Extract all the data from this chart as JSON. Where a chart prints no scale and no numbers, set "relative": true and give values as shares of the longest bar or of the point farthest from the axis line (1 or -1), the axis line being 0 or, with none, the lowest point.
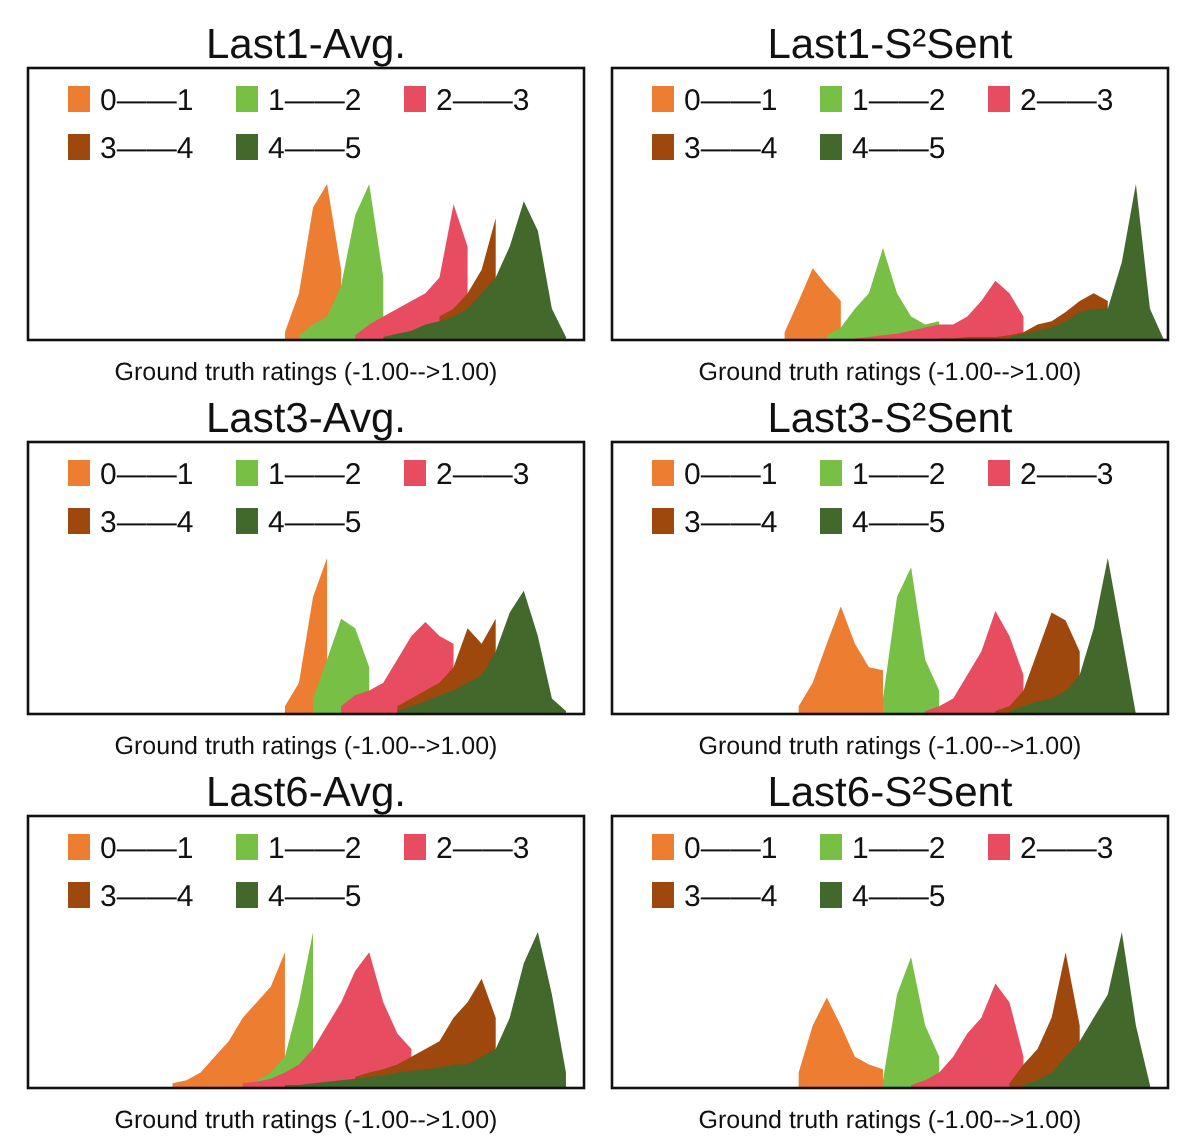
{
  "chart_data": [
    {
      "type": "area",
      "title": "Last1-Avg.",
      "xlabel": "Ground truth ratings (-1.00-->1.00)",
      "relative": true,
      "legend": "top",
      "categories": [
        null,
        null,
        null,
        null,
        null,
        null,
        null,
        null,
        null,
        null,
        null,
        null,
        null,
        null,
        null,
        null,
        null,
        null,
        null,
        null,
        null,
        null,
        null,
        null,
        null,
        null,
        null,
        null,
        null,
        null,
        null,
        null,
        null,
        null,
        null,
        null,
        null,
        null,
        null,
        null
      ],
      "series": [
        {
          "name": "0——1",
          "color": "#ed7d31",
          "values": [
            null,
            null,
            null,
            null,
            null,
            null,
            null,
            null,
            null,
            null,
            null,
            null,
            null,
            null,
            null,
            null,
            null,
            null,
            0.05,
            0.3,
            0.85,
            1,
            0.45,
            null,
            null,
            null,
            null,
            null,
            null,
            null,
            null,
            null,
            null,
            null,
            null,
            null,
            null,
            null,
            null,
            null
          ]
        },
        {
          "name": "1——2",
          "color": "#77bf45",
          "values": [
            null,
            null,
            null,
            null,
            null,
            null,
            null,
            null,
            null,
            null,
            null,
            null,
            null,
            null,
            null,
            null,
            null,
            null,
            null,
            0.03,
            0.1,
            0.15,
            0.35,
            0.8,
            1,
            0.4,
            null,
            null,
            null,
            null,
            null,
            null,
            null,
            null,
            null,
            null,
            null,
            null,
            null,
            null
          ]
        },
        {
          "name": "2——3",
          "color": "#e84c60",
          "values": [
            null,
            null,
            null,
            null,
            null,
            null,
            null,
            null,
            null,
            null,
            null,
            null,
            null,
            null,
            null,
            null,
            null,
            null,
            null,
            null,
            null,
            null,
            null,
            0.03,
            0.1,
            0.15,
            0.2,
            0.25,
            0.3,
            0.4,
            0.87,
            0.6,
            null,
            null,
            null,
            null,
            null,
            null,
            null,
            null
          ]
        },
        {
          "name": "3——4",
          "color": "#9e480e",
          "values": [
            null,
            null,
            null,
            null,
            null,
            null,
            null,
            null,
            null,
            null,
            null,
            null,
            null,
            null,
            null,
            null,
            null,
            null,
            null,
            null,
            null,
            null,
            null,
            null,
            null,
            null,
            null,
            null,
            null,
            0.15,
            0.2,
            0.3,
            0.45,
            0.78,
            null,
            null,
            null,
            null,
            null,
            null
          ]
        },
        {
          "name": "4——5",
          "color": "#43682b",
          "values": [
            null,
            null,
            null,
            null,
            null,
            null,
            null,
            null,
            null,
            null,
            null,
            null,
            null,
            null,
            null,
            null,
            null,
            null,
            null,
            null,
            null,
            null,
            null,
            null,
            null,
            0.02,
            0.04,
            0.06,
            0.1,
            0.12,
            0.15,
            0.2,
            0.3,
            0.4,
            0.6,
            0.89,
            0.7,
            0.2,
            0.02,
            null
          ]
        }
      ]
    },
    {
      "type": "area",
      "title": "Last1-S²Sent",
      "xlabel": "Ground truth ratings (-1.00-->1.00)",
      "relative": true,
      "legend": "top",
      "categories": [
        null,
        null,
        null,
        null,
        null,
        null,
        null,
        null,
        null,
        null,
        null,
        null,
        null,
        null,
        null,
        null,
        null,
        null,
        null,
        null,
        null,
        null,
        null,
        null,
        null,
        null,
        null,
        null,
        null,
        null,
        null,
        null,
        null,
        null,
        null,
        null,
        null,
        null,
        null,
        null
      ],
      "series": [
        {
          "name": "0——1",
          "color": "#ed7d31",
          "values": [
            null,
            null,
            null,
            null,
            null,
            null,
            null,
            null,
            null,
            null,
            null,
            null,
            0.05,
            0.25,
            0.46,
            0.35,
            0.25,
            null,
            null,
            null,
            null,
            null,
            null,
            null,
            null,
            null,
            null,
            null,
            null,
            null,
            null,
            null,
            null,
            null,
            null,
            null,
            null,
            null,
            null,
            null
          ]
        },
        {
          "name": "1——2",
          "color": "#77bf45",
          "values": [
            null,
            null,
            null,
            null,
            null,
            null,
            null,
            null,
            null,
            null,
            null,
            null,
            null,
            null,
            null,
            0.03,
            0.08,
            0.2,
            0.3,
            0.59,
            0.3,
            0.15,
            0.1,
            0.12,
            null,
            null,
            null,
            null,
            null,
            null,
            null,
            null,
            null,
            null,
            null,
            null,
            null,
            null,
            null,
            null
          ]
        },
        {
          "name": "2——3",
          "color": "#e84c60",
          "values": [
            null,
            null,
            null,
            null,
            null,
            null,
            null,
            null,
            null,
            null,
            null,
            null,
            null,
            null,
            null,
            null,
            null,
            0.01,
            0.02,
            0.03,
            0.04,
            0.06,
            0.08,
            0.1,
            0.1,
            0.15,
            0.25,
            0.38,
            0.3,
            0.15,
            null,
            null,
            null,
            null,
            null,
            null,
            null,
            null,
            null,
            null
          ]
        },
        {
          "name": "3——4",
          "color": "#9e480e",
          "values": [
            null,
            null,
            null,
            null,
            null,
            null,
            null,
            null,
            null,
            null,
            null,
            null,
            null,
            null,
            null,
            null,
            null,
            null,
            null,
            null,
            null,
            null,
            null,
            0.01,
            0.01,
            0.02,
            0.02,
            0.02,
            0.03,
            0.05,
            0.1,
            0.12,
            0.18,
            0.25,
            0.3,
            0.25,
            null,
            null,
            null,
            null
          ]
        },
        {
          "name": "4——5",
          "color": "#43682b",
          "values": [
            null,
            null,
            null,
            null,
            null,
            null,
            null,
            null,
            null,
            null,
            null,
            null,
            null,
            null,
            null,
            null,
            null,
            null,
            null,
            null,
            null,
            null,
            null,
            null,
            null,
            null,
            null,
            null,
            0.02,
            0.04,
            0.06,
            0.08,
            0.12,
            0.18,
            0.2,
            0.2,
            0.5,
            1,
            0.2,
            0
          ]
        }
      ]
    },
    {
      "type": "area",
      "title": "Last3-Avg.",
      "xlabel": "Ground truth ratings (-1.00-->1.00)",
      "relative": true,
      "legend": "top",
      "categories": [
        null,
        null,
        null,
        null,
        null,
        null,
        null,
        null,
        null,
        null,
        null,
        null,
        null,
        null,
        null,
        null,
        null,
        null,
        null,
        null,
        null,
        null,
        null,
        null,
        null,
        null,
        null,
        null,
        null,
        null,
        null,
        null,
        null,
        null,
        null,
        null,
        null,
        null,
        null,
        null
      ],
      "series": [
        {
          "name": "0——1",
          "color": "#ed7d31",
          "values": [
            null,
            null,
            null,
            null,
            null,
            null,
            null,
            null,
            null,
            null,
            null,
            null,
            null,
            null,
            null,
            null,
            null,
            null,
            0.05,
            0.2,
            0.75,
            1,
            null,
            null,
            null,
            null,
            null,
            null,
            null,
            null,
            null,
            null,
            null,
            null,
            null,
            null,
            null,
            null,
            null,
            null
          ]
        },
        {
          "name": "1——2",
          "color": "#77bf45",
          "values": [
            null,
            null,
            null,
            null,
            null,
            null,
            null,
            null,
            null,
            null,
            null,
            null,
            null,
            null,
            null,
            null,
            null,
            null,
            null,
            null,
            0.1,
            0.35,
            0.61,
            0.55,
            0.3,
            null,
            null,
            null,
            null,
            null,
            null,
            null,
            null,
            null,
            null,
            null,
            null,
            null,
            null,
            null
          ]
        },
        {
          "name": "2——3",
          "color": "#e84c60",
          "values": [
            null,
            null,
            null,
            null,
            null,
            null,
            null,
            null,
            null,
            null,
            null,
            null,
            null,
            null,
            null,
            null,
            null,
            null,
            null,
            null,
            null,
            null,
            0.05,
            0.12,
            0.15,
            0.2,
            0.35,
            0.5,
            0.59,
            0.5,
            0.45,
            null,
            null,
            null,
            null,
            null,
            null,
            null,
            null,
            null
          ]
        },
        {
          "name": "3——4",
          "color": "#9e480e",
          "values": [
            null,
            null,
            null,
            null,
            null,
            null,
            null,
            null,
            null,
            null,
            null,
            null,
            null,
            null,
            null,
            null,
            null,
            null,
            null,
            null,
            null,
            null,
            null,
            null,
            null,
            null,
            0.05,
            0.1,
            0.15,
            0.2,
            0.3,
            0.55,
            0.45,
            0.61,
            null,
            null,
            null,
            null,
            null,
            null
          ]
        },
        {
          "name": "4——5",
          "color": "#43682b",
          "values": [
            null,
            null,
            null,
            null,
            null,
            null,
            null,
            null,
            null,
            null,
            null,
            null,
            null,
            null,
            null,
            null,
            null,
            null,
            null,
            null,
            null,
            null,
            null,
            null,
            null,
            null,
            0.02,
            0.05,
            0.08,
            0.12,
            0.15,
            0.2,
            0.25,
            0.4,
            0.65,
            0.79,
            0.5,
            0.1,
            0.02,
            null
          ]
        }
      ]
    },
    {
      "type": "area",
      "title": "Last3-S²Sent",
      "xlabel": "Ground truth ratings (-1.00-->1.00)",
      "relative": true,
      "legend": "top",
      "categories": [
        null,
        null,
        null,
        null,
        null,
        null,
        null,
        null,
        null,
        null,
        null,
        null,
        null,
        null,
        null,
        null,
        null,
        null,
        null,
        null,
        null,
        null,
        null,
        null,
        null,
        null,
        null,
        null,
        null,
        null,
        null,
        null,
        null,
        null,
        null,
        null,
        null,
        null,
        null,
        null
      ],
      "series": [
        {
          "name": "0——1",
          "color": "#ed7d31",
          "values": [
            null,
            null,
            null,
            null,
            null,
            null,
            null,
            null,
            null,
            null,
            null,
            null,
            null,
            0.05,
            0.2,
            0.45,
            0.69,
            0.45,
            0.3,
            0.28,
            null,
            null,
            null,
            null,
            null,
            null,
            null,
            null,
            null,
            null,
            null,
            null,
            null,
            null,
            null,
            null,
            null,
            null,
            null,
            null
          ]
        },
        {
          "name": "1——2",
          "color": "#77bf45",
          "values": [
            null,
            null,
            null,
            null,
            null,
            null,
            null,
            null,
            null,
            null,
            null,
            null,
            null,
            null,
            null,
            null,
            null,
            null,
            null,
            0.1,
            0.75,
            0.94,
            0.35,
            0.15,
            null,
            null,
            null,
            null,
            null,
            null,
            null,
            null,
            null,
            null,
            null,
            null,
            null,
            null,
            null,
            null
          ]
        },
        {
          "name": "2——3",
          "color": "#e84c60",
          "values": [
            null,
            null,
            null,
            null,
            null,
            null,
            null,
            null,
            null,
            null,
            null,
            null,
            null,
            null,
            null,
            null,
            null,
            null,
            null,
            null,
            null,
            null,
            0.02,
            0.05,
            0.1,
            0.25,
            0.4,
            0.66,
            0.5,
            0.25,
            null,
            null,
            null,
            null,
            null,
            null,
            null,
            null,
            null,
            null
          ]
        },
        {
          "name": "3——4",
          "color": "#9e480e",
          "values": [
            null,
            null,
            null,
            null,
            null,
            null,
            null,
            null,
            null,
            null,
            null,
            null,
            null,
            null,
            null,
            null,
            null,
            null,
            null,
            null,
            null,
            null,
            null,
            null,
            null,
            null,
            null,
            0.02,
            0.05,
            0.15,
            0.4,
            0.65,
            0.6,
            0.4,
            null,
            null,
            null,
            null,
            null,
            null
          ]
        },
        {
          "name": "4——5",
          "color": "#43682b",
          "values": [
            null,
            null,
            null,
            null,
            null,
            null,
            null,
            null,
            null,
            null,
            null,
            null,
            null,
            null,
            null,
            null,
            null,
            null,
            null,
            null,
            null,
            null,
            null,
            null,
            null,
            null,
            null,
            null,
            0.02,
            0.05,
            0.08,
            0.1,
            0.15,
            0.25,
            0.55,
            1,
            0.5,
            0,
            null,
            null
          ]
        }
      ]
    },
    {
      "type": "area",
      "title": "Last6-Avg.",
      "xlabel": "Ground truth ratings (-1.00-->1.00)",
      "relative": true,
      "legend": "top",
      "categories": [
        null,
        null,
        null,
        null,
        null,
        null,
        null,
        null,
        null,
        null,
        null,
        null,
        null,
        null,
        null,
        null,
        null,
        null,
        null,
        null,
        null,
        null,
        null,
        null,
        null,
        null,
        null,
        null,
        null,
        null,
        null,
        null,
        null,
        null,
        null,
        null,
        null,
        null,
        null,
        null
      ],
      "series": [
        {
          "name": "0——1",
          "color": "#ed7d31",
          "values": [
            null,
            null,
            null,
            null,
            null,
            null,
            null,
            null,
            null,
            null,
            0.03,
            0.05,
            0.1,
            0.2,
            0.3,
            0.45,
            0.55,
            0.65,
            0.87,
            null,
            null,
            null,
            null,
            null,
            null,
            null,
            null,
            null,
            null,
            null,
            null,
            null,
            null,
            null,
            null,
            null,
            null,
            null,
            null,
            null
          ]
        },
        {
          "name": "1——2",
          "color": "#77bf45",
          "values": [
            null,
            null,
            null,
            null,
            null,
            null,
            null,
            null,
            null,
            null,
            null,
            null,
            null,
            null,
            null,
            null,
            0.05,
            0.1,
            0.2,
            0.55,
            1,
            null,
            null,
            null,
            null,
            null,
            null,
            null,
            null,
            null,
            null,
            null,
            null,
            null,
            null,
            null,
            null,
            null,
            null,
            null
          ]
        },
        {
          "name": "2——3",
          "color": "#e84c60",
          "values": [
            null,
            null,
            null,
            null,
            null,
            null,
            null,
            null,
            null,
            null,
            null,
            null,
            null,
            null,
            null,
            0.03,
            0.04,
            0.06,
            0.1,
            0.15,
            0.25,
            0.4,
            0.55,
            0.75,
            0.87,
            0.55,
            0.35,
            0.25,
            null,
            null,
            null,
            null,
            null,
            null,
            null,
            null,
            null,
            null,
            null,
            null
          ]
        },
        {
          "name": "3——4",
          "color": "#9e480e",
          "values": [
            null,
            null,
            null,
            null,
            null,
            null,
            null,
            null,
            null,
            null,
            null,
            null,
            null,
            null,
            null,
            null,
            null,
            null,
            null,
            null,
            null,
            null,
            null,
            0.07,
            0.1,
            0.12,
            0.15,
            0.2,
            0.25,
            0.3,
            0.45,
            0.55,
            0.7,
            0.45,
            null,
            null,
            null,
            null,
            null,
            null
          ]
        },
        {
          "name": "4——5",
          "color": "#43682b",
          "values": [
            null,
            null,
            null,
            null,
            null,
            null,
            null,
            null,
            null,
            null,
            null,
            null,
            null,
            null,
            null,
            null,
            null,
            null,
            0.02,
            0.02,
            0.03,
            0.04,
            0.05,
            0.06,
            0.07,
            0.08,
            0.1,
            0.11,
            0.12,
            0.13,
            0.15,
            0.15,
            0.2,
            0.25,
            0.45,
            0.8,
            1,
            0.6,
            0.1,
            null
          ]
        }
      ]
    },
    {
      "type": "area",
      "title": "Last6-S²Sent",
      "xlabel": "Ground truth ratings (-1.00-->1.00)",
      "relative": true,
      "legend": "top",
      "categories": [
        null,
        null,
        null,
        null,
        null,
        null,
        null,
        null,
        null,
        null,
        null,
        null,
        null,
        null,
        null,
        null,
        null,
        null,
        null,
        null,
        null,
        null,
        null,
        null,
        null,
        null,
        null,
        null,
        null,
        null,
        null,
        null,
        null,
        null,
        null,
        null,
        null,
        null,
        null,
        null
      ],
      "series": [
        {
          "name": "0——1",
          "color": "#ed7d31",
          "values": [
            null,
            null,
            null,
            null,
            null,
            null,
            null,
            null,
            null,
            null,
            null,
            null,
            null,
            0.1,
            0.4,
            0.58,
            0.4,
            0.2,
            0.15,
            0.12,
            null,
            null,
            null,
            null,
            null,
            null,
            null,
            null,
            null,
            null,
            null,
            null,
            null,
            null,
            null,
            null,
            null,
            null,
            null,
            null
          ]
        },
        {
          "name": "1——2",
          "color": "#77bf45",
          "values": [
            null,
            null,
            null,
            null,
            null,
            null,
            null,
            null,
            null,
            null,
            null,
            null,
            null,
            null,
            null,
            null,
            null,
            null,
            null,
            0.05,
            0.6,
            0.84,
            0.4,
            0.2,
            null,
            null,
            null,
            null,
            null,
            null,
            null,
            null,
            null,
            null,
            null,
            null,
            null,
            null,
            null,
            null
          ]
        },
        {
          "name": "2——3",
          "color": "#e84c60",
          "values": [
            null,
            null,
            null,
            null,
            null,
            null,
            null,
            null,
            null,
            null,
            null,
            null,
            null,
            null,
            null,
            null,
            null,
            null,
            null,
            null,
            null,
            0.02,
            0.05,
            0.1,
            0.2,
            0.35,
            0.45,
            0.67,
            0.55,
            0.2,
            null,
            null,
            null,
            null,
            null,
            null,
            null,
            null,
            null,
            null
          ]
        },
        {
          "name": "3——4",
          "color": "#9e480e",
          "values": [
            null,
            null,
            null,
            null,
            null,
            null,
            null,
            null,
            null,
            null,
            null,
            null,
            null,
            null,
            null,
            null,
            null,
            null,
            null,
            null,
            null,
            null,
            null,
            null,
            null,
            null,
            null,
            null,
            0.03,
            0.15,
            0.25,
            0.45,
            0.87,
            0.4,
            null,
            null,
            null,
            null,
            null,
            null
          ]
        },
        {
          "name": "4——5",
          "color": "#43682b",
          "values": [
            null,
            null,
            null,
            null,
            null,
            null,
            null,
            null,
            null,
            null,
            null,
            null,
            null,
            null,
            null,
            null,
            null,
            null,
            null,
            null,
            null,
            null,
            null,
            null,
            null,
            null,
            null,
            null,
            null,
            0.02,
            0.05,
            0.1,
            0.2,
            0.3,
            0.45,
            0.6,
            1,
            0.4,
            0.02,
            null
          ]
        }
      ]
    }
  ]
}
